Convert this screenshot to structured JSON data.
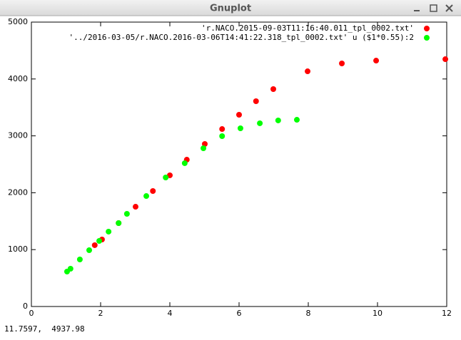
{
  "window": {
    "title": "Gnuplot",
    "status": "11.7597,  4937.98"
  },
  "chart_data": {
    "type": "scatter",
    "xlim": [
      0,
      12
    ],
    "xticks": [
      0,
      2,
      4,
      6,
      8,
      10,
      12
    ],
    "ylim": [
      0,
      5000
    ],
    "yticks": [
      0,
      1000,
      2000,
      3000,
      4000,
      5000
    ],
    "legend": "top-right",
    "series": [
      {
        "name": "'r.NACO.2015-09-03T11:16:40.011_tpl_0002.txt'",
        "color": "#ff0000",
        "x": [
          1.83,
          2.04,
          2.52,
          3.01,
          3.51,
          4.0,
          4.49,
          5.01,
          5.51,
          6.0,
          6.49,
          6.99,
          7.98,
          8.97,
          9.96,
          11.96
        ],
        "values": [
          1078,
          1178,
          1466,
          1754,
          2030,
          2306,
          2581,
          2857,
          3120,
          3371,
          3609,
          3822,
          4135,
          4273,
          4323,
          4348
        ]
      },
      {
        "name": "'../2016-03-05/r.NACO.2016-03-06T14:41:22.318_tpl_0002.txt' u ($1*0.55):2",
        "color": "#00ff00",
        "x": [
          1.03,
          1.13,
          1.4,
          1.67,
          1.96,
          2.23,
          2.52,
          2.76,
          3.32,
          3.88,
          4.43,
          4.97,
          5.51,
          6.04,
          6.6,
          7.13,
          7.67
        ],
        "values": [
          614,
          664,
          827,
          990,
          1153,
          1316,
          1466,
          1629,
          1942,
          2268,
          2519,
          2782,
          2995,
          3133,
          3221,
          3271,
          3283
        ]
      }
    ]
  }
}
